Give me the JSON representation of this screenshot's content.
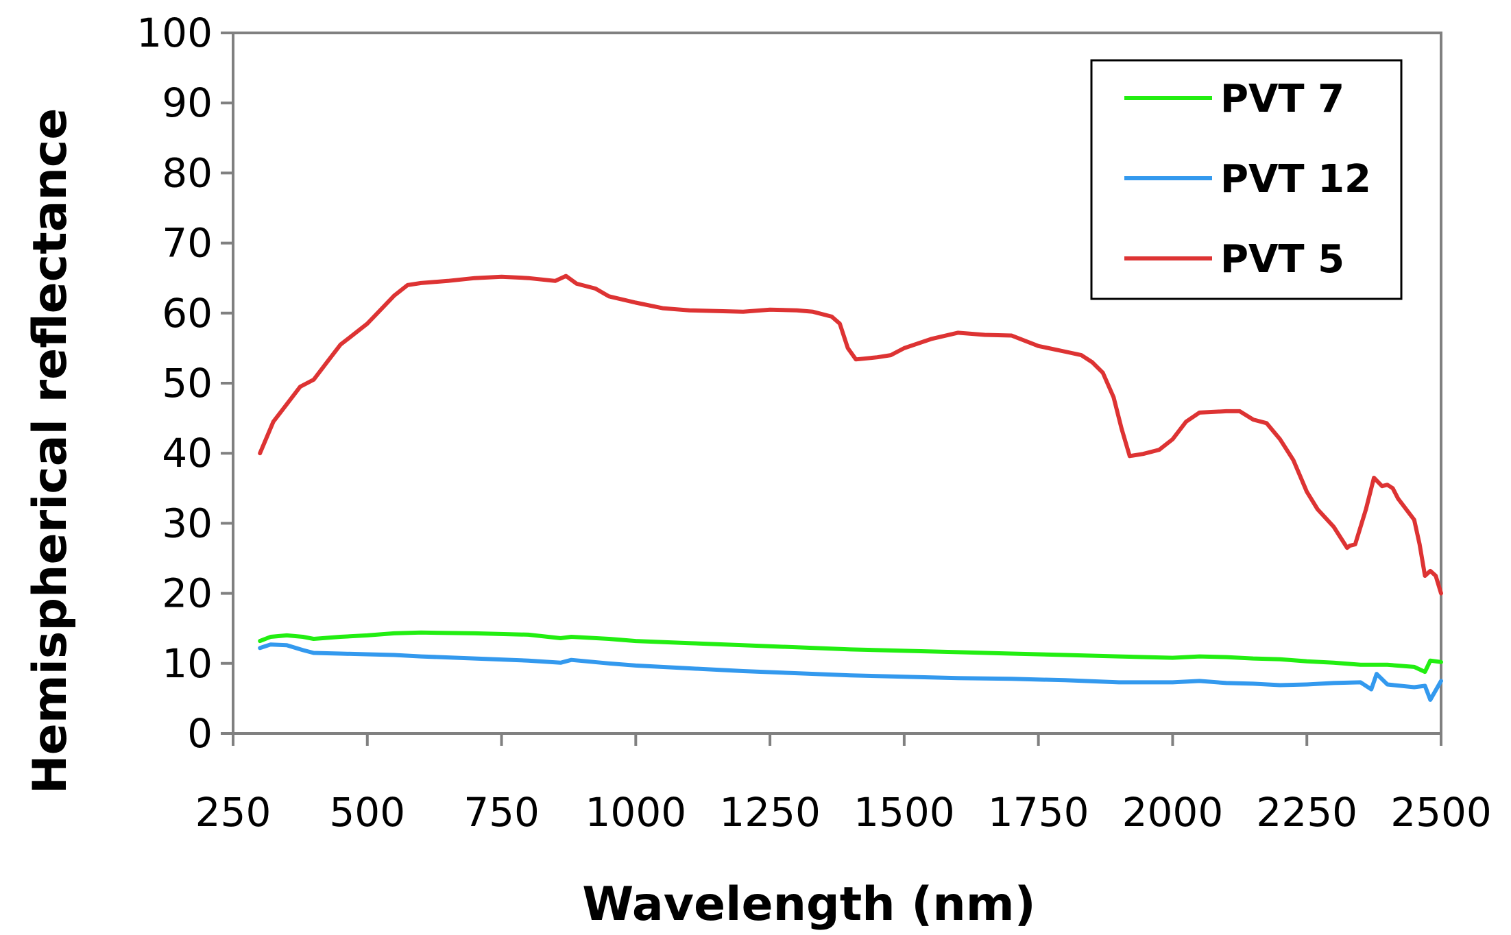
{
  "chart_data": {
    "type": "line",
    "title": "",
    "xlabel": "Wavelength (nm)",
    "ylabel": "Hemispherical reflectance",
    "xlim": [
      250,
      2500
    ],
    "ylim": [
      0,
      100
    ],
    "xticks": [
      250,
      500,
      750,
      1000,
      1250,
      1500,
      1750,
      2000,
      2250,
      2500
    ],
    "yticks": [
      0,
      10,
      20,
      30,
      40,
      50,
      60,
      70,
      80,
      90,
      100
    ],
    "xtick_labels": [
      "250",
      "500",
      "750",
      "1000",
      "1250",
      "1500",
      "1750",
      "2000",
      "2250",
      "2500"
    ],
    "ytick_labels": [
      "0",
      "10",
      "20",
      "30",
      "40",
      "50",
      "60",
      "70",
      "80",
      "90",
      "100"
    ],
    "grid": false,
    "legend_position": "top-right",
    "series": [
      {
        "name": "PVT 7",
        "color": "#22ee11",
        "x": [
          300,
          320,
          350,
          380,
          400,
          450,
          500,
          550,
          600,
          700,
          800,
          860,
          880,
          950,
          1000,
          1100,
          1200,
          1300,
          1400,
          1500,
          1600,
          1700,
          1800,
          1900,
          2000,
          2050,
          2100,
          2150,
          2200,
          2250,
          2300,
          2350,
          2400,
          2450,
          2470,
          2480,
          2500
        ],
        "y": [
          13.2,
          13.8,
          14.0,
          13.8,
          13.5,
          13.8,
          14.0,
          14.3,
          14.4,
          14.3,
          14.1,
          13.6,
          13.8,
          13.5,
          13.2,
          12.9,
          12.6,
          12.3,
          12.0,
          11.8,
          11.6,
          11.4,
          11.2,
          11.0,
          10.8,
          11.0,
          10.9,
          10.7,
          10.6,
          10.3,
          10.1,
          9.8,
          9.8,
          9.5,
          8.8,
          10.4,
          10.2
        ]
      },
      {
        "name": "PVT 12",
        "color": "#3399ee",
        "x": [
          300,
          320,
          350,
          380,
          400,
          450,
          500,
          550,
          600,
          700,
          800,
          860,
          880,
          950,
          1000,
          1100,
          1200,
          1300,
          1400,
          1500,
          1600,
          1700,
          1800,
          1900,
          2000,
          2050,
          2100,
          2150,
          2200,
          2250,
          2300,
          2350,
          2370,
          2380,
          2400,
          2450,
          2470,
          2480,
          2500
        ],
        "y": [
          12.2,
          12.7,
          12.6,
          11.9,
          11.5,
          11.4,
          11.3,
          11.2,
          11.0,
          10.7,
          10.4,
          10.1,
          10.5,
          10.0,
          9.7,
          9.3,
          8.9,
          8.6,
          8.3,
          8.1,
          7.9,
          7.8,
          7.6,
          7.3,
          7.3,
          7.5,
          7.2,
          7.1,
          6.9,
          7.0,
          7.2,
          7.3,
          6.3,
          8.5,
          7.0,
          6.6,
          6.8,
          4.8,
          7.5
        ]
      },
      {
        "name": "PVT 5",
        "color": "#dd3333",
        "x": [
          300,
          325,
          350,
          375,
          400,
          425,
          450,
          475,
          500,
          525,
          550,
          575,
          600,
          650,
          700,
          750,
          800,
          850,
          870,
          890,
          925,
          950,
          1000,
          1050,
          1100,
          1150,
          1200,
          1250,
          1300,
          1330,
          1365,
          1380,
          1395,
          1410,
          1425,
          1450,
          1475,
          1500,
          1550,
          1600,
          1650,
          1700,
          1750,
          1800,
          1830,
          1850,
          1870,
          1890,
          1905,
          1920,
          1945,
          1975,
          2000,
          2025,
          2050,
          2075,
          2100,
          2125,
          2150,
          2175,
          2200,
          2225,
          2250,
          2270,
          2300,
          2325,
          2330,
          2340,
          2360,
          2375,
          2390,
          2400,
          2410,
          2420,
          2440,
          2450,
          2460,
          2470,
          2480,
          2490,
          2500
        ],
        "y": [
          40.0,
          44.5,
          47.0,
          49.5,
          50.5,
          53.0,
          55.5,
          57.0,
          58.5,
          60.5,
          62.5,
          64.0,
          64.3,
          64.6,
          65.0,
          65.2,
          65.0,
          64.6,
          65.3,
          64.2,
          63.5,
          62.4,
          61.5,
          60.7,
          60.4,
          60.3,
          60.2,
          60.5,
          60.4,
          60.2,
          59.5,
          58.5,
          55.0,
          53.4,
          53.5,
          53.7,
          54.0,
          55.0,
          56.3,
          57.2,
          56.9,
          56.8,
          55.3,
          54.5,
          54.0,
          53.0,
          51.5,
          48.0,
          43.5,
          39.6,
          39.9,
          40.5,
          42.0,
          44.5,
          45.8,
          45.9,
          46.0,
          46.0,
          44.8,
          44.3,
          42.0,
          39.0,
          34.5,
          32.0,
          29.5,
          26.5,
          26.8,
          27.0,
          32.0,
          36.5,
          35.3,
          35.5,
          35.0,
          33.5,
          31.5,
          30.5,
          27.0,
          22.5,
          23.2,
          22.5,
          20.0
        ]
      }
    ]
  }
}
